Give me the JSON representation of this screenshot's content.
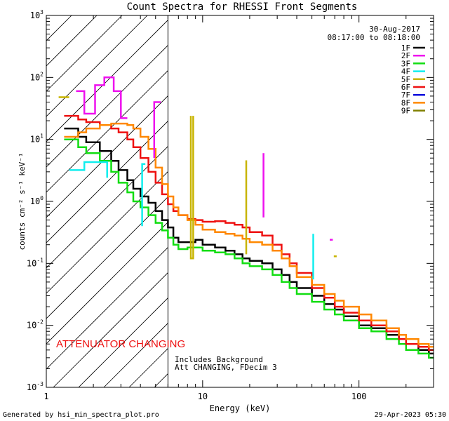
{
  "chart_data": {
    "type": "line",
    "title": "Count Spectra for RHESSI Front Segments",
    "xlabel": "Energy (keV)",
    "ylabel": "counts cm⁻² s⁻¹ keV⁻¹",
    "xscale": "log",
    "yscale": "log",
    "xlim": [
      1,
      300
    ],
    "ylim": [
      0.001,
      1000
    ],
    "x_ticks": [
      {
        "v": 1,
        "label": "1"
      },
      {
        "v": 10,
        "label": "10"
      },
      {
        "v": 100,
        "label": "100"
      }
    ],
    "y_ticks": [
      {
        "base": "10",
        "exp": "-3",
        "v": 0.001
      },
      {
        "base": "10",
        "exp": "-2",
        "v": 0.01
      },
      {
        "base": "10",
        "exp": "-1",
        "v": 0.1
      },
      {
        "base": "10",
        "exp": "0",
        "v": 1
      },
      {
        "base": "10",
        "exp": "1",
        "v": 10
      },
      {
        "base": "10",
        "exp": "2",
        "v": 100
      },
      {
        "base": "10",
        "exp": "3",
        "v": 1000
      }
    ],
    "date": "30-Aug-2017",
    "time_range": "08:17:00 to 08:18:00",
    "attenuator_label": "ATTENUATOR CHANGING",
    "attenuator_color": "#ee1111",
    "hatch_limit_kev": 6,
    "notes": [
      "Includes Background",
      "Att CHANGING, FDecim 3"
    ],
    "legend": [
      {
        "name": "1F",
        "color": "#000000"
      },
      {
        "name": "2F",
        "color": "#ee11ee"
      },
      {
        "name": "3F",
        "color": "#11dd11"
      },
      {
        "name": "4F",
        "color": "#11eeee"
      },
      {
        "name": "5F",
        "color": "#c8b400"
      },
      {
        "name": "6F",
        "color": "#ee1111"
      },
      {
        "name": "7F",
        "color": "#1111dd"
      },
      {
        "name": "8F",
        "color": "#ff8800"
      },
      {
        "name": "9F",
        "color": "#808000"
      }
    ],
    "series": [
      {
        "name": "1F",
        "color": "#000000",
        "x": [
          1.3,
          1.6,
          1.8,
          2.2,
          2.6,
          2.9,
          3.3,
          3.6,
          4.0,
          4.5,
          5.0,
          5.5,
          6.0,
          6.5,
          7,
          8,
          9,
          10,
          12,
          14,
          16,
          18,
          20,
          24,
          28,
          32,
          36,
          40,
          50,
          60,
          70,
          80,
          100,
          120,
          150,
          180,
          200,
          240,
          280
        ],
        "y": [
          15,
          11,
          9,
          6.5,
          4.5,
          3.2,
          2.2,
          1.6,
          1.2,
          0.95,
          0.7,
          0.5,
          0.38,
          0.26,
          0.22,
          0.22,
          0.24,
          0.2,
          0.18,
          0.16,
          0.14,
          0.12,
          0.11,
          0.1,
          0.08,
          0.065,
          0.05,
          0.04,
          0.03,
          0.022,
          0.018,
          0.014,
          0.01,
          0.009,
          0.007,
          0.006,
          0.005,
          0.004,
          0.0035
        ]
      },
      {
        "name": "3F",
        "color": "#11dd11",
        "x": [
          1.3,
          1.6,
          1.8,
          2.2,
          2.6,
          2.9,
          3.3,
          3.6,
          4.0,
          4.5,
          5.0,
          5.5,
          6.0,
          6.5,
          7,
          8,
          9,
          10,
          12,
          14,
          16,
          18,
          20,
          24,
          28,
          32,
          36,
          40,
          50,
          60,
          70,
          80,
          100,
          120,
          150,
          180,
          200,
          240,
          280
        ],
        "y": [
          10,
          7.5,
          6,
          4.5,
          3,
          2,
          1.4,
          1.0,
          0.8,
          0.6,
          0.45,
          0.34,
          0.26,
          0.2,
          0.17,
          0.18,
          0.18,
          0.16,
          0.15,
          0.14,
          0.12,
          0.1,
          0.09,
          0.08,
          0.065,
          0.05,
          0.04,
          0.032,
          0.024,
          0.018,
          0.015,
          0.012,
          0.009,
          0.008,
          0.006,
          0.005,
          0.004,
          0.0035,
          0.003
        ]
      },
      {
        "name": "6F",
        "color": "#ee1111",
        "x": [
          1.3,
          1.6,
          1.8,
          2.2,
          2.6,
          2.9,
          3.3,
          3.6,
          4.0,
          4.5,
          5.0,
          5.5,
          6.0,
          6.5,
          7,
          8,
          9,
          10,
          12,
          14,
          16,
          18,
          20,
          24,
          28,
          32,
          36,
          40,
          50,
          60,
          70,
          80,
          100,
          120,
          150,
          180,
          200,
          240,
          280
        ],
        "y": [
          24,
          21,
          19,
          17,
          15,
          13,
          10,
          7.5,
          5,
          3,
          2,
          1.3,
          0.9,
          0.7,
          0.6,
          0.52,
          0.5,
          0.47,
          0.48,
          0.45,
          0.42,
          0.38,
          0.32,
          0.28,
          0.2,
          0.14,
          0.1,
          0.07,
          0.04,
          0.028,
          0.02,
          0.016,
          0.012,
          0.01,
          0.008,
          0.006,
          0.005,
          0.0045,
          0.004
        ]
      },
      {
        "name": "8F",
        "color": "#ff8800",
        "x": [
          1.3,
          1.6,
          1.8,
          2.2,
          2.6,
          2.9,
          3.3,
          3.6,
          4.0,
          4.5,
          5.0,
          5.5,
          6.0,
          6.5,
          7,
          8,
          9,
          10,
          12,
          14,
          16,
          18,
          20,
          24,
          28,
          32,
          36,
          40,
          50,
          60,
          70,
          80,
          100,
          120,
          150,
          180,
          200,
          240,
          280
        ],
        "y": [
          11,
          13,
          15,
          17,
          18,
          18,
          17,
          15,
          11,
          7,
          3.5,
          1.9,
          1.2,
          0.8,
          0.6,
          0.5,
          0.42,
          0.35,
          0.32,
          0.3,
          0.28,
          0.25,
          0.22,
          0.2,
          0.16,
          0.12,
          0.09,
          0.06,
          0.045,
          0.032,
          0.025,
          0.02,
          0.015,
          0.012,
          0.009,
          0.007,
          0.006,
          0.005,
          0.0045
        ]
      }
    ],
    "segments": [
      {
        "name": "2F",
        "color": "#ee11ee",
        "points": [
          [
            1.55,
            60
          ],
          [
            1.75,
            60
          ],
          [
            1.75,
            26
          ],
          [
            2.05,
            26
          ],
          [
            2.05,
            75
          ],
          [
            2.35,
            75
          ],
          [
            2.35,
            100
          ],
          [
            2.7,
            100
          ],
          [
            2.7,
            60
          ],
          [
            3.0,
            60
          ],
          [
            3.0,
            22
          ],
          [
            3.3,
            22
          ]
        ]
      },
      {
        "name": "2F",
        "color": "#ee11ee",
        "points": [
          [
            4.9,
            5
          ],
          [
            4.9,
            40
          ],
          [
            5.4,
            40
          ]
        ]
      },
      {
        "name": "2F",
        "color": "#ee11ee",
        "points": [
          [
            24.5,
            6
          ],
          [
            24.5,
            0.55
          ]
        ]
      },
      {
        "name": "2F",
        "color": "#ee11ee",
        "points": [
          [
            65,
            0.24
          ],
          [
            68,
            0.24
          ]
        ]
      },
      {
        "name": "4F",
        "color": "#11eeee",
        "points": [
          [
            1.4,
            3.2
          ],
          [
            1.75,
            3.2
          ],
          [
            1.75,
            4.3
          ],
          [
            2.45,
            4.3
          ],
          [
            2.45,
            2.4
          ]
        ]
      },
      {
        "name": "4F",
        "color": "#11eeee",
        "points": [
          [
            4.1,
            0.4
          ],
          [
            4.1,
            4
          ],
          [
            4.3,
            4
          ]
        ]
      },
      {
        "name": "4F",
        "color": "#11eeee",
        "points": [
          [
            51,
            0.3
          ],
          [
            51,
            0.055
          ]
        ]
      },
      {
        "name": "5F",
        "color": "#c8b400",
        "points": [
          [
            1.2,
            48
          ],
          [
            1.4,
            48
          ]
        ]
      },
      {
        "name": "5F",
        "color": "#c8b400",
        "points": [
          [
            8.4,
            24
          ],
          [
            8.4,
            0.12
          ],
          [
            8.7,
            0.12
          ],
          [
            8.7,
            24
          ]
        ]
      },
      {
        "name": "5F",
        "color": "#c8b400",
        "points": [
          [
            19,
            4.6
          ],
          [
            19,
            0.14
          ]
        ]
      },
      {
        "name": "5F",
        "color": "#c8b400",
        "points": [
          [
            69,
            0.13
          ],
          [
            72,
            0.13
          ]
        ]
      }
    ]
  },
  "footer": {
    "left": "Generated by hsi_min_spectra_plot.pro",
    "right": "29-Apr-2023 05:30"
  }
}
